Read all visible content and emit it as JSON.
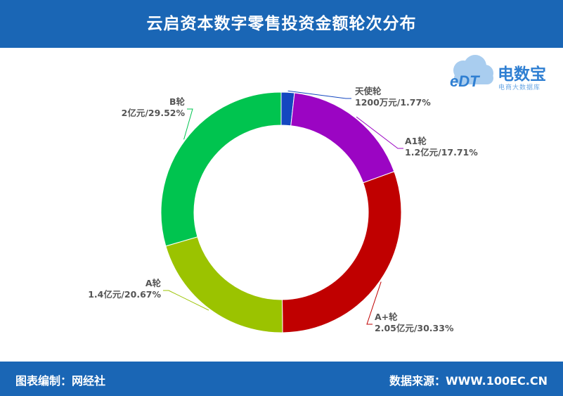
{
  "header": {
    "title": "云启资本数字零售投资金额轮次分布"
  },
  "footer": {
    "left": "图表编制：网经社",
    "right": "数据来源：WWW.100EC.CN"
  },
  "logo": {
    "brand": "电数宝",
    "sub": "电商大数据库",
    "mark": "eDT"
  },
  "chart_data": {
    "type": "pie",
    "variant": "donut",
    "start": "top",
    "direction": "clockwise",
    "slices": [
      {
        "name": "天使轮",
        "value_text": "1200万元",
        "percent": 1.77,
        "label": "1200万元/1.77%",
        "color": "#1447c0"
      },
      {
        "name": "A1轮",
        "value_text": "1.2亿元",
        "percent": 17.71,
        "label": "1.2亿元/17.71%",
        "color": "#9b05c3"
      },
      {
        "name": "A+轮",
        "value_text": "2.05亿元",
        "percent": 30.33,
        "label": "2.05亿元/30.33%",
        "color": "#c00000"
      },
      {
        "name": "A轮",
        "value_text": "1.4亿元",
        "percent": 20.67,
        "label": "1.4亿元/20.67%",
        "color": "#9bc300"
      },
      {
        "name": "B轮",
        "value_text": "2亿元",
        "percent": 29.52,
        "label": "2亿元/29.52%",
        "color": "#00c44f"
      }
    ]
  }
}
